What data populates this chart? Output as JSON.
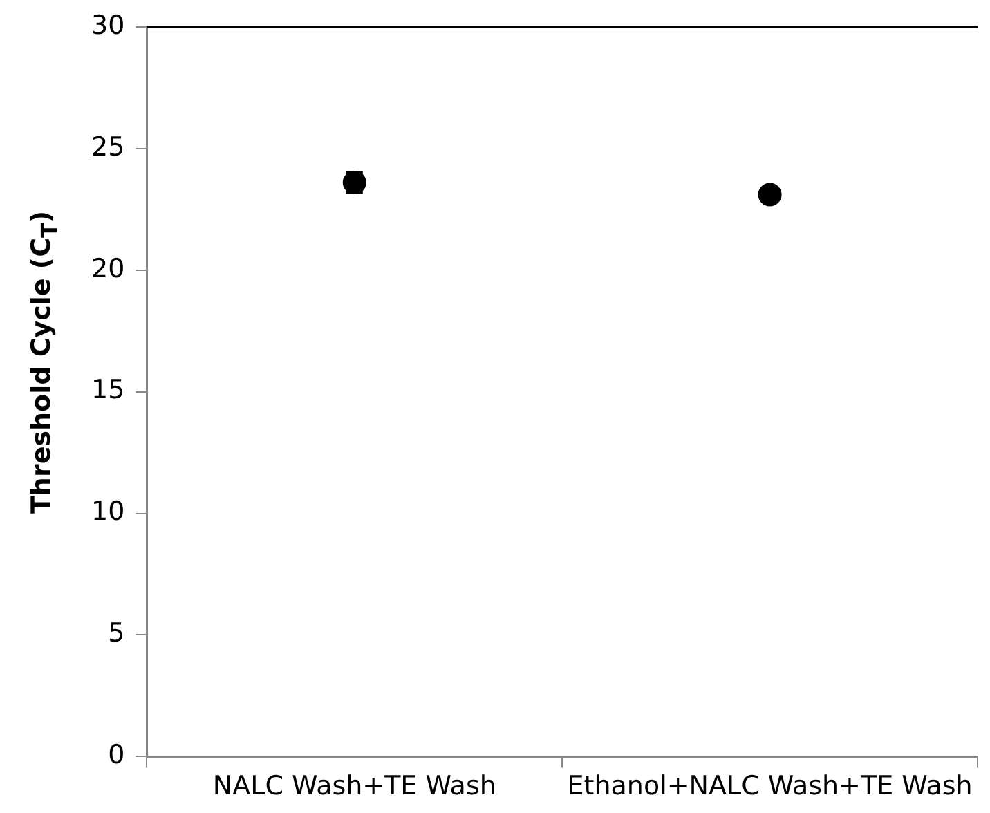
{
  "chart_data": {
    "type": "scatter",
    "ylabel": "Threshold Cycle (C$_{T}$)",
    "categories": [
      "NALC Wash+TE Wash",
      "Ethanol+NALC Wash+TE Wash"
    ],
    "series": [
      {
        "color": "#000000",
        "values": [
          23.6,
          23.1
        ],
        "errors": [
          0.4,
          null
        ]
      }
    ],
    "ylim": [
      0,
      30
    ],
    "yticks": [
      0,
      5,
      10,
      15,
      20,
      25,
      30
    ],
    "grid": false,
    "legend": false,
    "marker": "circle"
  }
}
